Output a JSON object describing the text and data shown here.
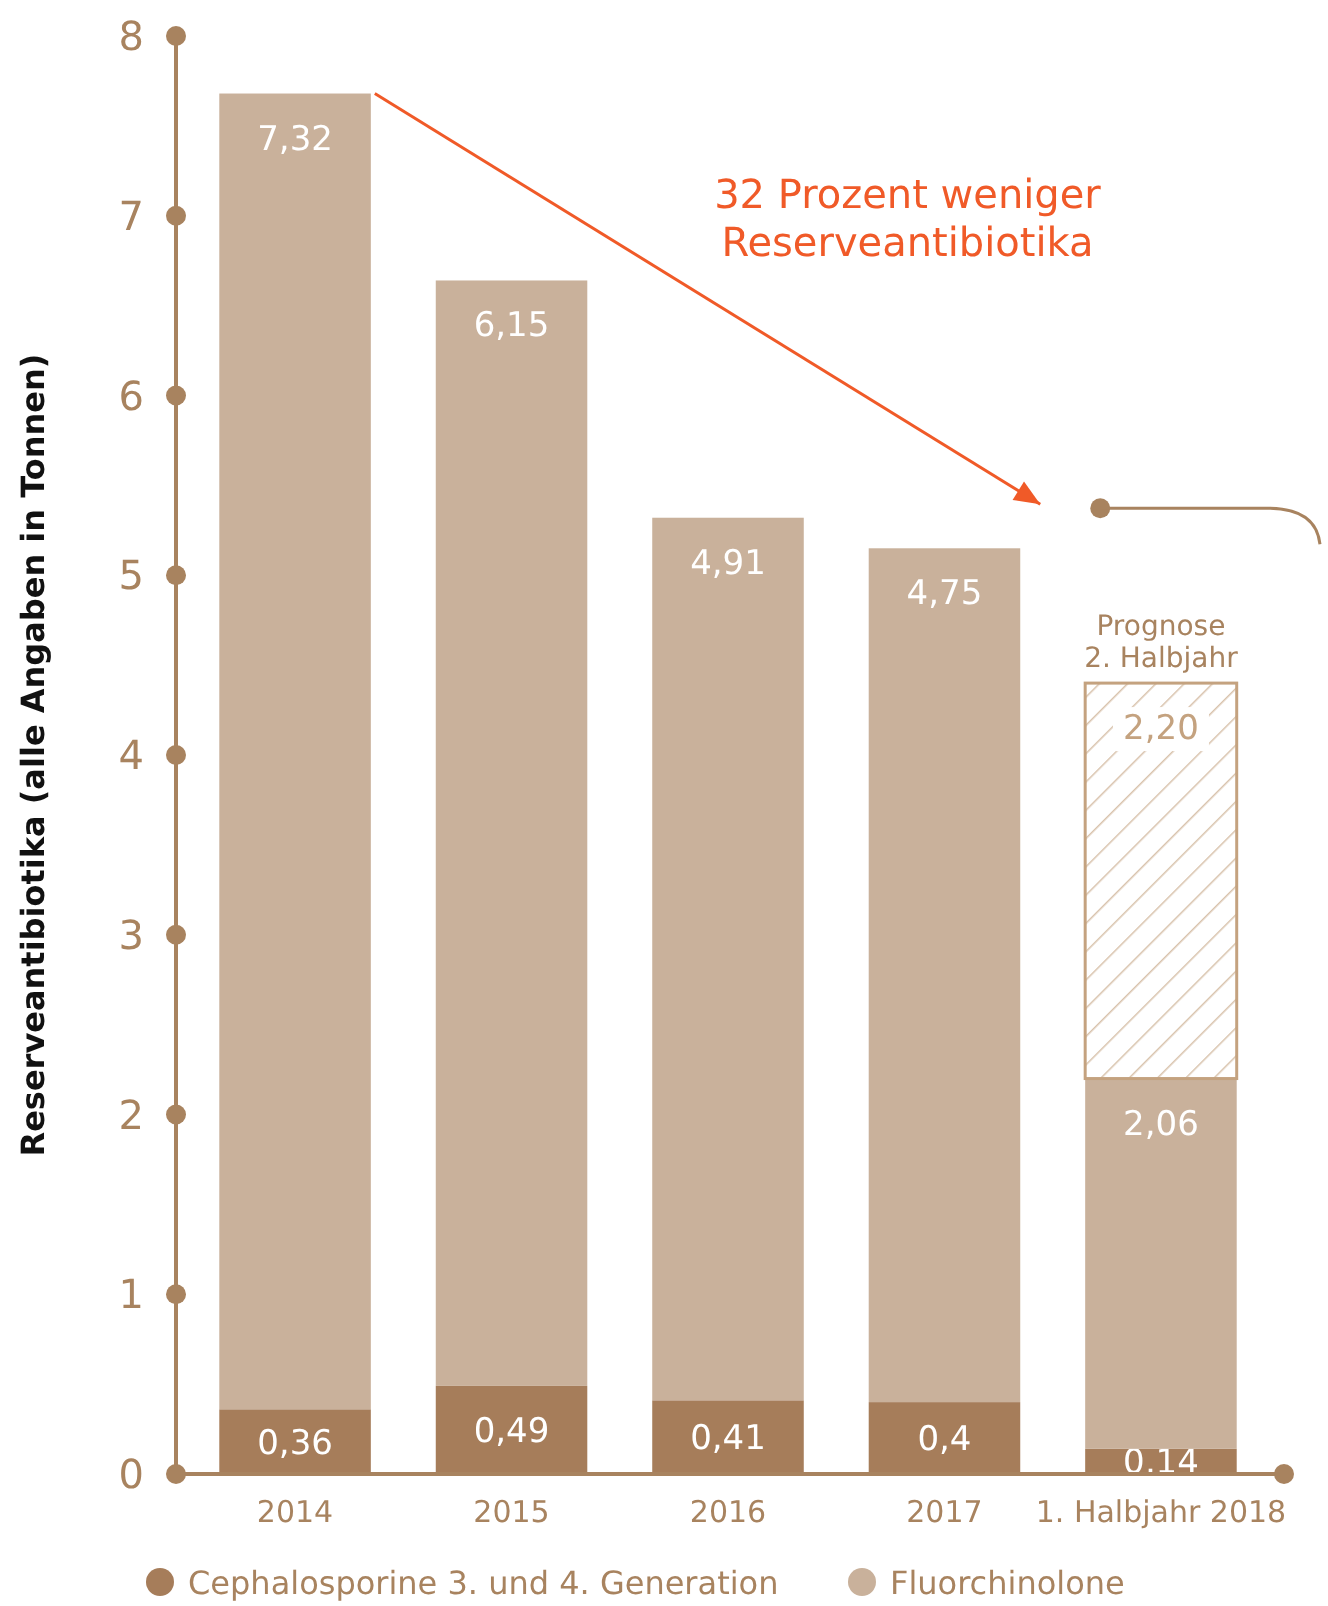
{
  "chart_data": {
    "type": "bar",
    "stacked": true,
    "ylabel": "Reserveantibiotika (alle Angaben in Tonnen)",
    "categories": [
      "2014",
      "2015",
      "2016",
      "2017",
      "1. Halbjahr 2018"
    ],
    "series": [
      {
        "name": "Cephalosporine 3. und 4. Generation",
        "color": "#a67d5a",
        "values": [
          0.36,
          0.49,
          0.41,
          0.4,
          0.14
        ],
        "value_labels": [
          "0,36",
          "0,49",
          "0,41",
          "0,4",
          "0,14"
        ]
      },
      {
        "name": "Fluorchinolone",
        "color": "#c9b19b",
        "values": [
          7.32,
          6.15,
          4.91,
          4.75,
          2.06
        ],
        "value_labels": [
          "7,32",
          "6,15",
          "4,91",
          "4,75",
          "2,06"
        ]
      },
      {
        "name": "Prognose\n2. Halbjahr",
        "color": "#c4a27f",
        "values": [
          null,
          null,
          null,
          null,
          2.2
        ],
        "value_labels": [
          null,
          null,
          null,
          null,
          "2,20"
        ]
      }
    ],
    "ylim": [
      0,
      8
    ],
    "yticks": [
      0,
      1,
      2,
      3,
      4,
      5,
      6,
      7,
      8
    ],
    "legend": "bottom",
    "annotations": [
      "32 Prozent weniger\nReserveantibiotika"
    ]
  }
}
